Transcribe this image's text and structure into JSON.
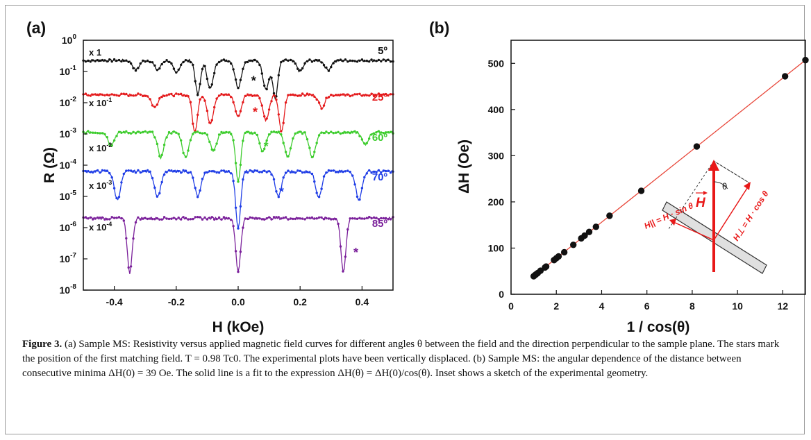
{
  "colors": {
    "black": "#111111",
    "red": "#e41a1c",
    "green": "#3ccc2c",
    "blue": "#1f3de6",
    "purple": "#7a1f9a",
    "fit": "#e8473a",
    "inset": "#e81818"
  },
  "panel_a": {
    "label": "(a)",
    "chart_data": {
      "type": "line",
      "xlabel": "H (kOe)",
      "ylabel": "R (Ω)",
      "xlim": [
        -0.5,
        0.5
      ],
      "ylim_log10": [
        -8,
        0
      ],
      "y_scale": "log",
      "x_ticks": [
        "-0.4",
        "-0.2",
        "0.0",
        "0.2",
        "0.4"
      ],
      "y_ticks": [
        {
          "base": "10",
          "exp": "0"
        },
        {
          "base": "10",
          "exp": "-1"
        },
        {
          "base": "10",
          "exp": "-2"
        },
        {
          "base": "10",
          "exp": "-3"
        },
        {
          "base": "10",
          "exp": "-4"
        },
        {
          "base": "10",
          "exp": "-5"
        },
        {
          "base": "10",
          "exp": "-6"
        },
        {
          "base": "10",
          "exp": "-7"
        },
        {
          "base": "10",
          "exp": "-8"
        }
      ],
      "series": [
        {
          "name": "5º",
          "scale": "x 1",
          "scale_exp": "",
          "color": "#111111",
          "baseline_log10": -0.65,
          "star_x": 0.05,
          "star_log10": -1.3,
          "minima": [
            {
              "x": -0.33,
              "d": 0.3
            },
            {
              "x": -0.26,
              "d": 0.3
            },
            {
              "x": -0.2,
              "d": 0.4
            },
            {
              "x": -0.13,
              "d": 1.1
            },
            {
              "x": -0.09,
              "d": 0.9
            },
            {
              "x": 0.0,
              "d": 0.85
            },
            {
              "x": 0.09,
              "d": 0.9
            },
            {
              "x": 0.12,
              "d": 1.2
            },
            {
              "x": 0.2,
              "d": 0.35
            },
            {
              "x": 0.29,
              "d": 0.3
            }
          ]
        },
        {
          "name": "25º",
          "scale": "x 10",
          "scale_exp": "-1",
          "color": "#e41a1c",
          "baseline_log10": -1.75,
          "star_x": 0.055,
          "star_log10": -2.3,
          "minima": [
            {
              "x": -0.27,
              "d": 0.4
            },
            {
              "x": -0.14,
              "d": 1.2
            },
            {
              "x": -0.09,
              "d": 0.9
            },
            {
              "x": 0.0,
              "d": 0.7
            },
            {
              "x": 0.09,
              "d": 0.8
            },
            {
              "x": 0.14,
              "d": 1.2
            },
            {
              "x": 0.27,
              "d": 0.4
            }
          ]
        },
        {
          "name": "60º",
          "scale": "x 10",
          "scale_exp": "-2",
          "color": "#3ccc2c",
          "baseline_log10": -2.95,
          "star_x": 0.09,
          "star_log10": -3.4,
          "minima": [
            {
              "x": -0.41,
              "d": 0.4
            },
            {
              "x": -0.25,
              "d": 0.8
            },
            {
              "x": -0.17,
              "d": 0.8
            },
            {
              "x": -0.08,
              "d": 0.6
            },
            {
              "x": 0.0,
              "d": 1.6
            },
            {
              "x": 0.08,
              "d": 0.6
            },
            {
              "x": 0.16,
              "d": 0.8
            },
            {
              "x": 0.24,
              "d": 0.8
            },
            {
              "x": 0.41,
              "d": 0.4
            }
          ]
        },
        {
          "name": "70º",
          "scale": "x 10",
          "scale_exp": "-3",
          "color": "#1f3de6",
          "baseline_log10": -4.2,
          "star_x": 0.14,
          "star_log10": -4.85,
          "minima": [
            {
              "x": -0.39,
              "d": 0.9
            },
            {
              "x": -0.26,
              "d": 0.8
            },
            {
              "x": -0.13,
              "d": 0.8
            },
            {
              "x": 0.0,
              "d": 1.8
            },
            {
              "x": 0.13,
              "d": 0.8
            },
            {
              "x": 0.26,
              "d": 0.8
            },
            {
              "x": 0.39,
              "d": 0.9
            }
          ]
        },
        {
          "name": "85º",
          "scale": "x 10",
          "scale_exp": "-4",
          "color": "#7a1f9a",
          "baseline_log10": -5.7,
          "star_x": 0.38,
          "star_log10": -6.8,
          "minima": [
            {
              "x": -0.35,
              "d": 1.75
            },
            {
              "x": 0.0,
              "d": 1.7
            },
            {
              "x": 0.34,
              "d": 1.7
            }
          ]
        }
      ]
    }
  },
  "panel_b": {
    "label": "(b)",
    "chart_data": {
      "type": "scatter",
      "xlabel": "1 / cos(θ)",
      "ylabel": "ΔH (Oe)",
      "xlim": [
        0,
        13
      ],
      "ylim": [
        0,
        550
      ],
      "x_ticks": [
        "0",
        "2",
        "4",
        "6",
        "8",
        "10",
        "12"
      ],
      "y_ticks": [
        "0",
        "100",
        "200",
        "300",
        "400",
        "500"
      ],
      "points": [
        {
          "x": 1.0,
          "y": 39
        },
        {
          "x": 1.05,
          "y": 41
        },
        {
          "x": 1.1,
          "y": 43
        },
        {
          "x": 1.18,
          "y": 46
        },
        {
          "x": 1.3,
          "y": 51
        },
        {
          "x": 1.5,
          "y": 58
        },
        {
          "x": 1.55,
          "y": 60
        },
        {
          "x": 1.9,
          "y": 74
        },
        {
          "x": 2.0,
          "y": 78
        },
        {
          "x": 2.1,
          "y": 82
        },
        {
          "x": 2.35,
          "y": 91
        },
        {
          "x": 2.75,
          "y": 107
        },
        {
          "x": 3.1,
          "y": 121
        },
        {
          "x": 3.25,
          "y": 127
        },
        {
          "x": 3.45,
          "y": 135
        },
        {
          "x": 3.75,
          "y": 146
        },
        {
          "x": 4.35,
          "y": 170
        },
        {
          "x": 5.75,
          "y": 224
        },
        {
          "x": 8.2,
          "y": 320
        },
        {
          "x": 12.1,
          "y": 472
        },
        {
          "x": 13.0,
          "y": 507
        }
      ],
      "fit": {
        "slope": 39,
        "x_range": [
          0.95,
          13
        ]
      }
    },
    "inset": {
      "H_label": "H",
      "theta_label": "θ",
      "perp_label": "H⊥ = H · cos θ",
      "par_label": "H|| = H · sin θ"
    }
  },
  "caption": {
    "figure_label": "Figure 3.",
    "text": "(a) Sample MS: Resistivity versus applied magnetic field curves for different angles θ between the field and the direction perpendicular to the sample plane. The stars mark the position of the first matching field. T = 0.98 Tc0. The experimental plots have been vertically displaced. (b) Sample MS: the angular dependence of the distance between consecutive minima ΔH(0) = 39 Oe. The solid line is a fit to the expression ΔH(θ) = ΔH(0)/cos(θ). Inset shows a sketch of the experimental geometry."
  }
}
